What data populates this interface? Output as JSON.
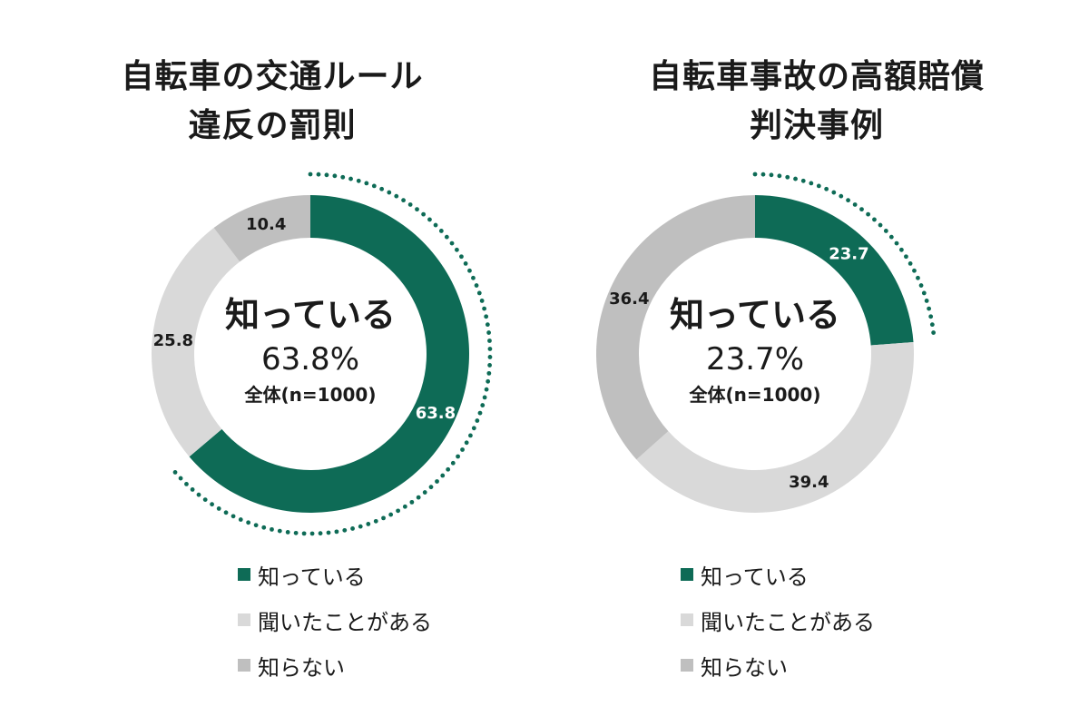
{
  "colors": {
    "known": "#0e6b56",
    "heard": "#d9d9d9",
    "unknown": "#bfbfbf",
    "dots": "#0e6b56",
    "label_light": "#ffffff",
    "label_dark": "#1a1a1a"
  },
  "legend": [
    {
      "label": "知っている",
      "color": "#0e6b56"
    },
    {
      "label": "聞いたことがある",
      "color": "#d9d9d9"
    },
    {
      "label": "知らない",
      "color": "#bfbfbf"
    }
  ],
  "chart_data": [
    {
      "type": "pie",
      "title_lines": [
        "自転車の交通ルール",
        "違反の罰則"
      ],
      "center": {
        "label": "知っている",
        "value": "63.8%",
        "note": "全体(n=1000)"
      },
      "series": [
        {
          "name": "知っている",
          "value": 63.8,
          "value_label": "63.8"
        },
        {
          "name": "聞いたことがある",
          "value": 25.8,
          "value_label": "25.8"
        },
        {
          "name": "知らない",
          "value": 10.4,
          "value_label": "10.4"
        }
      ]
    },
    {
      "type": "pie",
      "title_lines": [
        "自転車事故の高額賠償",
        "判決事例"
      ],
      "center": {
        "label": "知っている",
        "value": "23.7%",
        "note": "全体(n=1000)"
      },
      "series": [
        {
          "name": "知っている",
          "value": 23.7,
          "value_label": "23.7"
        },
        {
          "name": "聞いたことがある",
          "value": 39.4,
          "value_label": "39.4"
        },
        {
          "name": "知らない",
          "value": 36.4,
          "value_label": "36.4"
        }
      ]
    }
  ]
}
